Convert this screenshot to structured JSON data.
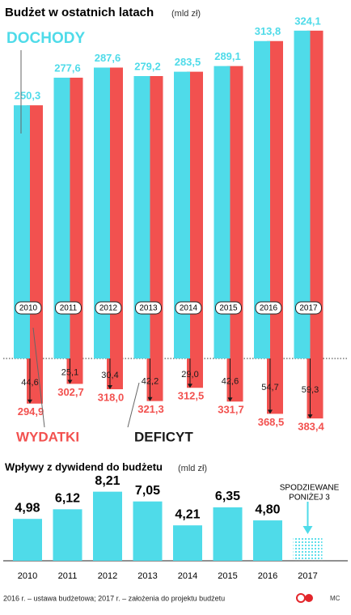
{
  "chart_data": [
    {
      "type": "budget",
      "title": "Budżet w ostatnich latach",
      "unit": "(mld zł)",
      "categories": [
        "2010",
        "2011",
        "2012",
        "2013",
        "2014",
        "2015",
        "2016",
        "2017"
      ],
      "series": [
        {
          "name": "DOCHODY",
          "color": "#4fdbe9",
          "values": [
            250.3,
            277.6,
            287.6,
            279.2,
            283.5,
            289.1,
            313.8,
            324.1
          ],
          "value_labels": [
            "250,3",
            "277,6",
            "287,6",
            "279,2",
            "283,5",
            "289,1",
            "313,8",
            "324,1"
          ]
        },
        {
          "name": "WYDATKI",
          "color": "#f2514f",
          "values": [
            294.9,
            302.7,
            318.0,
            321.3,
            312.5,
            331.7,
            368.5,
            383.4
          ],
          "value_labels": [
            "294,9",
            "302,7",
            "318,0",
            "321,3",
            "312,5",
            "331,7",
            "368,5",
            "383,4"
          ]
        },
        {
          "name": "DEFICYT",
          "color": "#1a1a1a",
          "values": [
            44.6,
            25.1,
            30.4,
            42.2,
            29.0,
            42.6,
            54.7,
            59.3
          ],
          "value_labels": [
            "44,6",
            "25,1",
            "30,4",
            "42,2",
            "29,0",
            "42,6",
            "54,7",
            "59,3"
          ]
        }
      ]
    },
    {
      "type": "bar",
      "title": "Wpływy z dywidend do budżetu",
      "unit": "(mld zł)",
      "categories": [
        "2010",
        "2011",
        "2012",
        "2013",
        "2014",
        "2015",
        "2016",
        "2017"
      ],
      "values": [
        4.98,
        6.12,
        8.21,
        7.05,
        4.21,
        6.35,
        4.8,
        null
      ],
      "value_labels": [
        "4,98",
        "6,12",
        "8,21",
        "7,05",
        "4,21",
        "6,35",
        "4,80",
        null
      ],
      "color": "#4fdbe9",
      "annotation": [
        "SPODZIEWANE",
        "PONIŻEJ 3"
      ]
    }
  ],
  "footer": {
    "note": "2016 r. – ustawa budżetowa; 2017 r. – założenia do projektu budżetu",
    "credit": "MC"
  }
}
